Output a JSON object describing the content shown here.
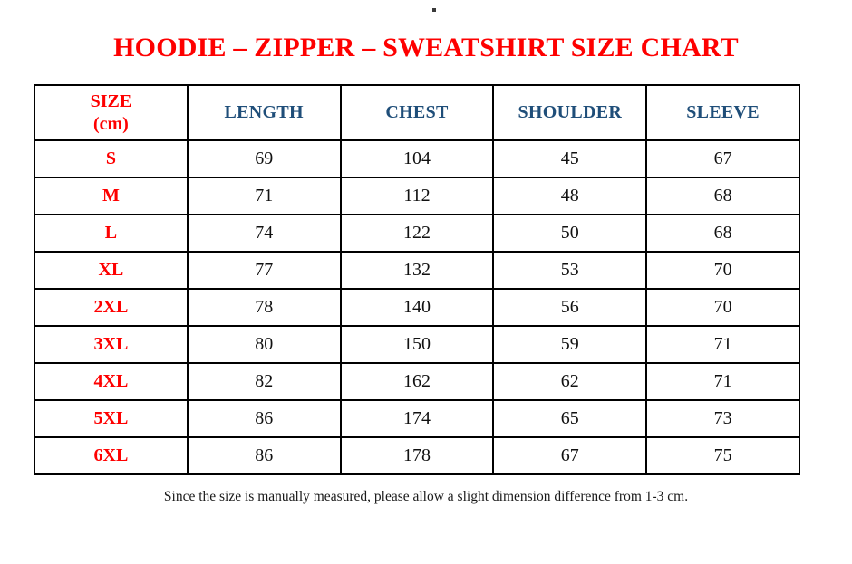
{
  "page": {
    "top_dot": "",
    "title": "HOODIE – ZIPPER – SWEATSHIRT SIZE CHART",
    "footer_note": "Since the size is manually measured, please allow a slight dimension difference from 1-3 cm."
  },
  "header_display": {
    "size_line1": "SIZE",
    "size_line2": "(cm)",
    "cols": [
      "LENGTH",
      "CHEST",
      "SHOULDER",
      "SLEEVE"
    ]
  },
  "chart_data": {
    "type": "table",
    "title": "HOODIE – ZIPPER – SWEATSHIRT SIZE CHART",
    "columns": [
      "SIZE (cm)",
      "LENGTH",
      "CHEST",
      "SHOULDER",
      "SLEEVE"
    ],
    "rows": [
      [
        "S",
        69,
        104,
        45,
        67
      ],
      [
        "M",
        71,
        112,
        48,
        68
      ],
      [
        "L",
        74,
        122,
        50,
        68
      ],
      [
        "XL",
        77,
        132,
        53,
        70
      ],
      [
        "2XL",
        78,
        140,
        56,
        70
      ],
      [
        "3XL",
        80,
        150,
        59,
        71
      ],
      [
        "4XL",
        82,
        162,
        62,
        71
      ],
      [
        "5XL",
        86,
        174,
        65,
        73
      ],
      [
        "6XL",
        86,
        178,
        67,
        75
      ]
    ],
    "note": "Since the size is manually measured, please allow a slight dimension difference from 1-3 cm."
  },
  "colors": {
    "title_red": "#fe0000",
    "header_blue": "#1f4e79",
    "text_black": "#111111",
    "border_black": "#000000",
    "background": "#ffffff"
  }
}
